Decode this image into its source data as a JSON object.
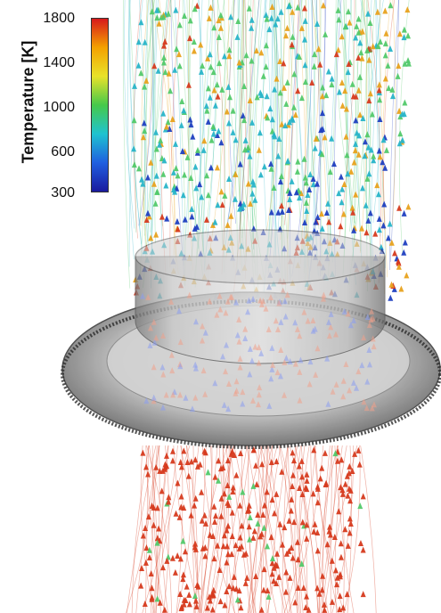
{
  "legend": {
    "title": "Temperature [K]",
    "ticks": [
      "1800",
      "1400",
      "1000",
      "600",
      "300"
    ],
    "gradient": [
      "#d7191c",
      "#f4a100",
      "#e8e22a",
      "#46c94a",
      "#1fc3d0",
      "#1f5fe0",
      "#1a1a9e"
    ]
  },
  "colors": {
    "hot": "#d63a1e",
    "warm": "#e8a21e",
    "mid": "#52c96a",
    "cool": "#28b4c8",
    "cold": "#1f3fc0",
    "shell": "#9a9a9a"
  }
}
